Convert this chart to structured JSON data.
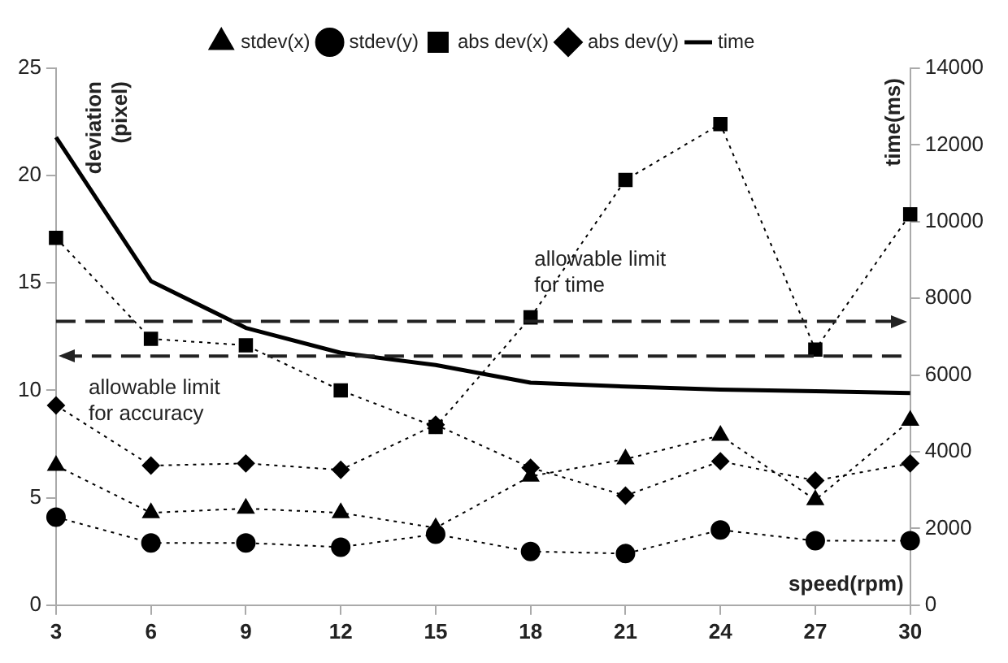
{
  "chart_data": {
    "type": "line",
    "xlabel": "speed(rpm)",
    "ylabel": "deviation (pixel)",
    "y2label": "time(ms)",
    "x": [
      3,
      6,
      9,
      12,
      15,
      18,
      21,
      24,
      27,
      30
    ],
    "xlim": [
      3,
      30
    ],
    "xticks": [
      3,
      6,
      9,
      12,
      15,
      18,
      21,
      24,
      27,
      30
    ],
    "ylim": [
      0,
      25
    ],
    "yticks": [
      0,
      5,
      10,
      15,
      20,
      25
    ],
    "y2lim": [
      0,
      14000
    ],
    "y2ticks": [
      0,
      2000,
      4000,
      6000,
      8000,
      10000,
      12000,
      14000
    ],
    "grid": false,
    "legend": "top",
    "series": [
      {
        "name": "stdev(x)",
        "color": "#000000",
        "marker": "triangle",
        "line_style": "dotted",
        "values": [
          6.5,
          4.3,
          4.5,
          4.3,
          3.6,
          6.0,
          6.8,
          7.9,
          4.9,
          8.6
        ]
      },
      {
        "name": "stdev(y)",
        "color": "#000000",
        "marker": "circle",
        "line_style": "dotted",
        "values": [
          4.1,
          2.9,
          2.9,
          2.7,
          3.3,
          2.5,
          2.4,
          3.5,
          3.0,
          3.0
        ]
      },
      {
        "name": "abs dev(x)",
        "color": "#000000",
        "marker": "square",
        "line_style": "dotted",
        "values": [
          17.1,
          12.4,
          12.1,
          10.0,
          8.3,
          13.4,
          19.8,
          22.4,
          11.9,
          18.2
        ]
      },
      {
        "name": "abs dev(y)",
        "color": "#000000",
        "marker": "diamond",
        "line_style": "dotted",
        "values": [
          9.3,
          6.5,
          6.6,
          6.3,
          8.4,
          6.4,
          5.1,
          6.7,
          5.8,
          6.6
        ]
      },
      {
        "name": "time",
        "color": "#000000",
        "marker": "none",
        "line_style": "solid",
        "axis": "y2",
        "values": [
          12200,
          8450,
          7230,
          6580,
          6260,
          5800,
          5700,
          5620,
          5580,
          5530
        ]
      }
    ],
    "ref_lines": [
      {
        "axis": "y2",
        "value": 7400,
        "label": "allowable limit\nfor time",
        "line_style": "dashed"
      },
      {
        "axis": "y",
        "value": 11.6,
        "label": "allowable limit\nfor accuracy",
        "line_style": "dashed"
      }
    ]
  }
}
